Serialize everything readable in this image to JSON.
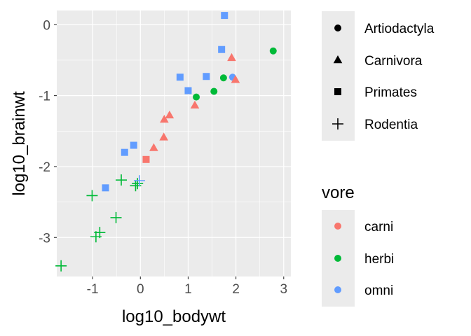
{
  "chart_data": {
    "type": "scatter",
    "xlabel": "log10_bodywt",
    "ylabel": "log10_brainwt",
    "xlim": [
      -1.75,
      3.15
    ],
    "ylim": [
      -3.55,
      0.2
    ],
    "x_ticks": [
      -1,
      0,
      1,
      2,
      3
    ],
    "y_ticks": [
      0,
      -1,
      -2,
      -3
    ],
    "grid": true,
    "shape_legend": {
      "title": "",
      "entries": [
        "Artiodactyla",
        "Carnivora",
        "Primates",
        "Rodentia"
      ]
    },
    "color_legend": {
      "title": "vore",
      "entries": [
        {
          "label": "carni",
          "color": "#f8766d"
        },
        {
          "label": "herbi",
          "color": "#00ba38"
        },
        {
          "label": "omni",
          "color": "#619cff"
        }
      ]
    },
    "points": [
      {
        "x": 1.17,
        "y": -1.02,
        "order": "Artiodactyla",
        "vore": "herbi"
      },
      {
        "x": 1.54,
        "y": -0.94,
        "order": "Artiodactyla",
        "vore": "herbi"
      },
      {
        "x": 1.74,
        "y": -0.75,
        "order": "Artiodactyla",
        "vore": "herbi"
      },
      {
        "x": 2.78,
        "y": -0.37,
        "order": "Artiodactyla",
        "vore": "herbi"
      },
      {
        "x": 1.93,
        "y": -0.74,
        "order": "Artiodactyla",
        "vore": "omni"
      },
      {
        "x": 0.28,
        "y": -1.74,
        "order": "Carnivora",
        "vore": "carni"
      },
      {
        "x": 0.49,
        "y": -1.59,
        "order": "Carnivora",
        "vore": "carni"
      },
      {
        "x": 0.5,
        "y": -1.34,
        "order": "Carnivora",
        "vore": "carni"
      },
      {
        "x": 0.61,
        "y": -1.28,
        "order": "Carnivora",
        "vore": "carni"
      },
      {
        "x": 1.14,
        "y": -1.14,
        "order": "Carnivora",
        "vore": "carni"
      },
      {
        "x": 1.91,
        "y": -0.47,
        "order": "Carnivora",
        "vore": "carni"
      },
      {
        "x": 1.99,
        "y": -0.78,
        "order": "Carnivora",
        "vore": "carni"
      },
      {
        "x": 0.12,
        "y": -1.9,
        "order": "Primates",
        "vore": "carni"
      },
      {
        "x": -0.33,
        "y": -1.8,
        "order": "Primates",
        "vore": "omni"
      },
      {
        "x": -0.14,
        "y": -1.7,
        "order": "Primates",
        "vore": "omni"
      },
      {
        "x": -0.73,
        "y": -2.3,
        "order": "Primates",
        "vore": "omni"
      },
      {
        "x": 0.83,
        "y": -0.74,
        "order": "Primates",
        "vore": "omni"
      },
      {
        "x": 1.0,
        "y": -0.93,
        "order": "Primates",
        "vore": "omni"
      },
      {
        "x": 1.38,
        "y": -0.73,
        "order": "Primates",
        "vore": "omni"
      },
      {
        "x": 1.7,
        "y": -0.35,
        "order": "Primates",
        "vore": "omni"
      },
      {
        "x": 1.76,
        "y": 0.13,
        "order": "Primates",
        "vore": "omni"
      },
      {
        "x": -1.66,
        "y": -3.4,
        "order": "Rodentia",
        "vore": "herbi"
      },
      {
        "x": -1.01,
        "y": -2.41,
        "order": "Rodentia",
        "vore": "herbi"
      },
      {
        "x": -0.93,
        "y": -2.99,
        "order": "Rodentia",
        "vore": "herbi"
      },
      {
        "x": -0.85,
        "y": -2.93,
        "order": "Rodentia",
        "vore": "herbi"
      },
      {
        "x": -0.51,
        "y": -2.72,
        "order": "Rodentia",
        "vore": "herbi"
      },
      {
        "x": -0.4,
        "y": -2.19,
        "order": "Rodentia",
        "vore": "herbi"
      },
      {
        "x": -0.1,
        "y": -2.27,
        "order": "Rodentia",
        "vore": "herbi"
      },
      {
        "x": -0.06,
        "y": -2.24,
        "order": "Rodentia",
        "vore": "herbi"
      },
      {
        "x": -0.02,
        "y": -2.2,
        "order": "Rodentia",
        "vore": "omni"
      }
    ]
  }
}
